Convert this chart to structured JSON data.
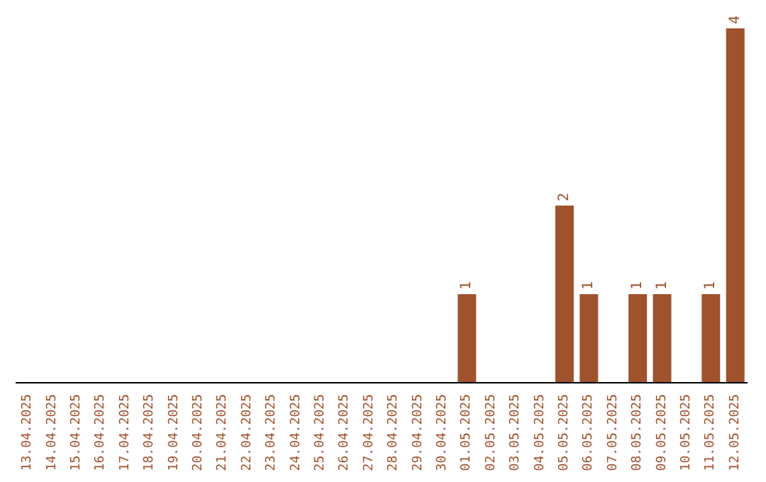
{
  "chart_data": {
    "type": "bar",
    "categories": [
      "13.04.2025",
      "14.04.2025",
      "15.04.2025",
      "16.04.2025",
      "17.04.2025",
      "18.04.2025",
      "19.04.2025",
      "20.04.2025",
      "21.04.2025",
      "22.04.2025",
      "23.04.2025",
      "24.04.2025",
      "25.04.2025",
      "26.04.2025",
      "27.04.2025",
      "28.04.2025",
      "29.04.2025",
      "30.04.2025",
      "01.05.2025",
      "02.05.2025",
      "03.05.2025",
      "04.05.2025",
      "05.05.2025",
      "06.05.2025",
      "07.05.2025",
      "08.05.2025",
      "09.05.2025",
      "10.05.2025",
      "11.05.2025",
      "12.05.2025"
    ],
    "values": [
      null,
      null,
      null,
      null,
      null,
      null,
      null,
      null,
      null,
      null,
      null,
      null,
      null,
      null,
      null,
      null,
      null,
      null,
      1,
      null,
      null,
      null,
      2,
      1,
      null,
      1,
      1,
      null,
      1,
      4
    ],
    "data_labels": true,
    "color": "#a0522d",
    "ylim": [
      0,
      4
    ],
    "tick_labels": "x",
    "grid": false,
    "legend": false
  }
}
